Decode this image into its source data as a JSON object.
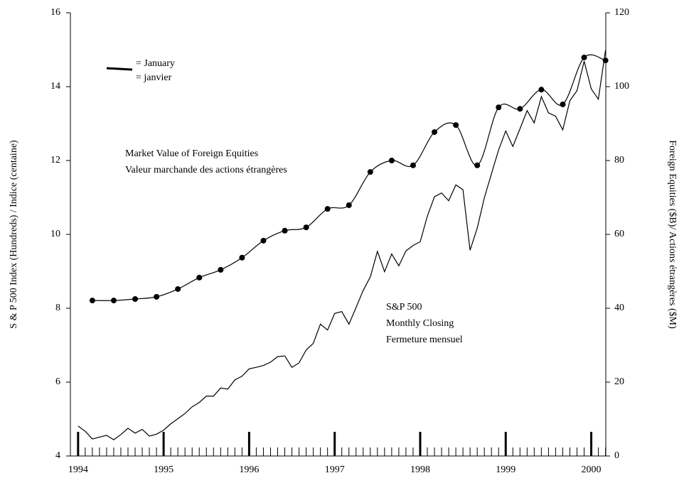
{
  "chart_data": {
    "type": "line",
    "ylabel": "S & P 500 Index (Hundreds) / Indice (centaine)",
    "y2label": "Foreign Equities ($B)/ Actions étrangères ($M)",
    "xlim": [
      1993.91,
      2000.17
    ],
    "xticks": [
      1994,
      1995,
      1996,
      1997,
      1998,
      1999,
      2000
    ],
    "ylim": [
      4,
      16
    ],
    "yticks": [
      4,
      6,
      8,
      10,
      12,
      14,
      16
    ],
    "y2lim": [
      0,
      120
    ],
    "y2ticks": [
      0,
      20,
      40,
      60,
      80,
      100,
      120
    ],
    "legend_note": [
      "= January",
      "= janvier"
    ],
    "annotations": [
      "Valeur marchande des actions étrangères",
      "Monthly Closing",
      "Fermeture mensuel"
    ],
    "series": [
      {
        "name": "S&P 500",
        "color": "#000000",
        "markers": false,
        "x": [
          1994,
          1994.083,
          1994.167,
          1994.25,
          1994.333,
          1994.417,
          1994.5,
          1994.583,
          1994.667,
          1994.75,
          1994.833,
          1994.917,
          1995,
          1995.083,
          1995.167,
          1995.25,
          1995.333,
          1995.417,
          1995.5,
          1995.583,
          1995.667,
          1995.75,
          1995.833,
          1995.917,
          1996,
          1996.083,
          1996.167,
          1996.25,
          1996.333,
          1996.417,
          1996.5,
          1996.583,
          1996.667,
          1996.75,
          1996.833,
          1996.917,
          1997,
          1997.083,
          1997.167,
          1997.25,
          1997.333,
          1997.417,
          1997.5,
          1997.583,
          1997.667,
          1997.75,
          1997.833,
          1997.917,
          1998,
          1998.083,
          1998.167,
          1998.25,
          1998.333,
          1998.417,
          1998.5,
          1998.583,
          1998.667,
          1998.75,
          1998.833,
          1998.917,
          1999,
          1999.083,
          1999.167,
          1999.25,
          1999.333,
          1999.417,
          1999.5,
          1999.583,
          1999.667,
          1999.75,
          1999.833,
          1999.917,
          2000,
          2000.083,
          2000.167
        ],
        "values": [
          4.81,
          4.67,
          4.46,
          4.51,
          4.56,
          4.44,
          4.58,
          4.75,
          4.62,
          4.72,
          4.54,
          4.59,
          4.7,
          4.87,
          5.01,
          5.15,
          5.33,
          5.45,
          5.62,
          5.62,
          5.84,
          5.81,
          6.06,
          6.16,
          6.36,
          6.4,
          6.45,
          6.54,
          6.69,
          6.71,
          6.4,
          6.52,
          6.87,
          7.05,
          7.57,
          7.41,
          7.86,
          7.91,
          7.57,
          8.02,
          8.48,
          8.85,
          9.54,
          8.99,
          9.47,
          9.15,
          9.55,
          9.7,
          9.8,
          10.49,
          11.02,
          11.12,
          10.91,
          11.34,
          11.21,
          9.57,
          10.17,
          10.99,
          11.64,
          12.29,
          12.8,
          12.38,
          12.86,
          13.35,
          13.02,
          13.73,
          13.29,
          13.2,
          12.83,
          13.62,
          13.89,
          14.69,
          13.94,
          13.66,
          14.99
        ]
      },
      {
        "name": "Market Value of Foreign Equities",
        "color": "#000000",
        "markers": true,
        "axis": "y2",
        "x": [
          1994.167,
          1994.417,
          1994.667,
          1994.917,
          1995.167,
          1995.417,
          1995.667,
          1995.917,
          1996.167,
          1996.417,
          1996.667,
          1996.917,
          1997.167,
          1997.417,
          1997.667,
          1997.917,
          1998.167,
          1998.417,
          1998.667,
          1998.917,
          1999.167,
          1999.417,
          1999.667,
          1999.917,
          2000.167
        ],
        "values": [
          42.1,
          42.1,
          42.5,
          43.1,
          45.2,
          48.3,
          50.4,
          53.7,
          58.3,
          61.0,
          61.9,
          66.9,
          67.9,
          76.9,
          80.0,
          78.7,
          87.7,
          89.6,
          78.7,
          94.4,
          94.0,
          99.2,
          95.2,
          107.9,
          107.1
        ]
      }
    ]
  }
}
